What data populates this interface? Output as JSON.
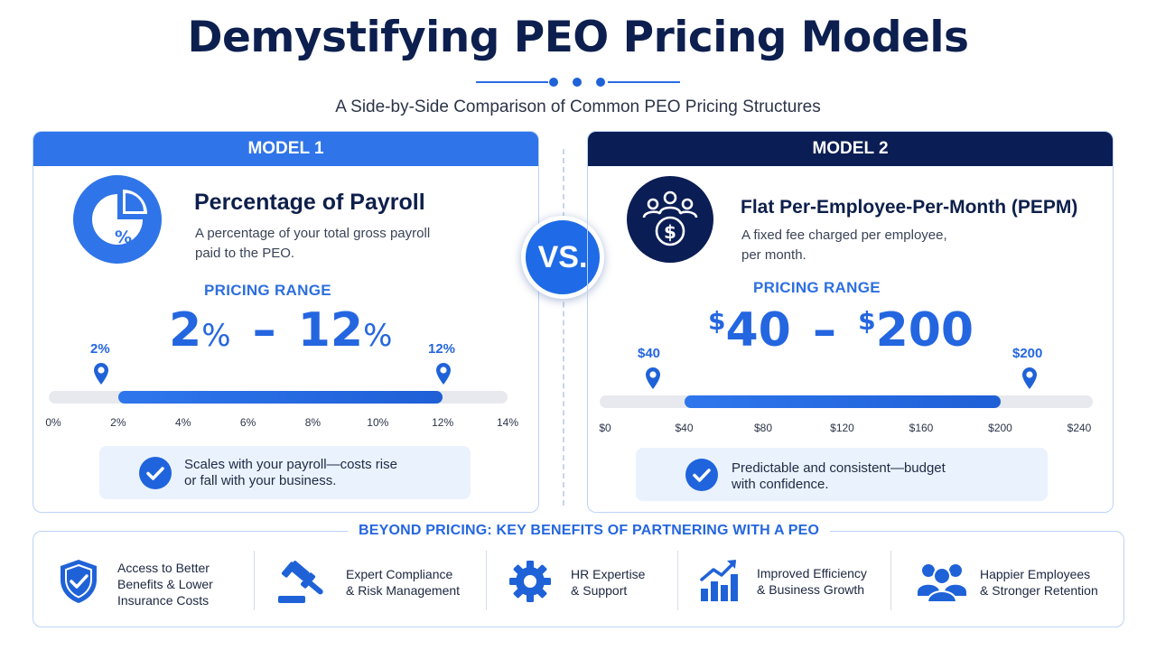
{
  "title": "Demystifying PEO Pricing Models",
  "subtitle": "A Side-by-Side Comparison of Common PEO Pricing Structures",
  "vs_label": "VS.",
  "colors": {
    "primary_blue": "#2f74e8",
    "navy": "#0b1d55",
    "light_bg": "#eaf2fd"
  },
  "model1": {
    "header": "MODEL 1",
    "icon": "pie-chart-percent-icon",
    "name": "Percentage of Payroll",
    "description_line1": "A percentage of your total gross payroll",
    "description_line2": "paid to the PEO.",
    "range_label": "PRICING RANGE",
    "range_low": "2",
    "range_low_unit": "%",
    "range_sep": "–",
    "range_high": "12",
    "range_high_unit": "%",
    "low_marker": "2%",
    "high_marker": "12%",
    "scale_min": 0,
    "scale_max": 14,
    "range_min": 2,
    "range_max": 12,
    "ticks": [
      "0%",
      "2%",
      "4%",
      "6%",
      "8%",
      "10%",
      "12%",
      "14%"
    ],
    "note_line1": "Scales with your payroll—costs rise",
    "note_line2": "or fall with your business."
  },
  "model2": {
    "header": "MODEL 2",
    "icon": "people-dollar-icon",
    "name": "Flat Per-Employee-Per-Month (PEPM)",
    "description_line1": "A fixed fee charged per employee,",
    "description_line2": "per month.",
    "range_label": "PRICING RANGE",
    "range_low_unit": "$",
    "range_low": "40",
    "range_sep": "–",
    "range_high_unit": "$",
    "range_high": "200",
    "low_marker": "$40",
    "high_marker": "$200",
    "scale_min": 0,
    "scale_max": 240,
    "range_min": 40,
    "range_max": 200,
    "ticks": [
      "$0",
      "$40",
      "$80",
      "$120",
      "$160",
      "$200",
      "$240"
    ],
    "note_line1": "Predictable and consistent—budget",
    "note_line2": "with confidence."
  },
  "benefits": {
    "title": "BEYOND PRICING: KEY BENEFITS OF PARTNERING WITH A PEO",
    "items": [
      {
        "icon": "shield-check-icon",
        "lines": [
          "Access to Better",
          "Benefits & Lower",
          "Insurance Costs"
        ]
      },
      {
        "icon": "gavel-icon",
        "lines": [
          "Expert Compliance",
          "& Risk Management"
        ]
      },
      {
        "icon": "gear-icon",
        "lines": [
          "HR Expertise",
          "& Support"
        ]
      },
      {
        "icon": "growth-chart-icon",
        "lines": [
          "Improved Efficiency",
          "& Business Growth"
        ]
      },
      {
        "icon": "people-group-icon",
        "lines": [
          "Happier Employees",
          "& Stronger Retention"
        ]
      }
    ]
  }
}
